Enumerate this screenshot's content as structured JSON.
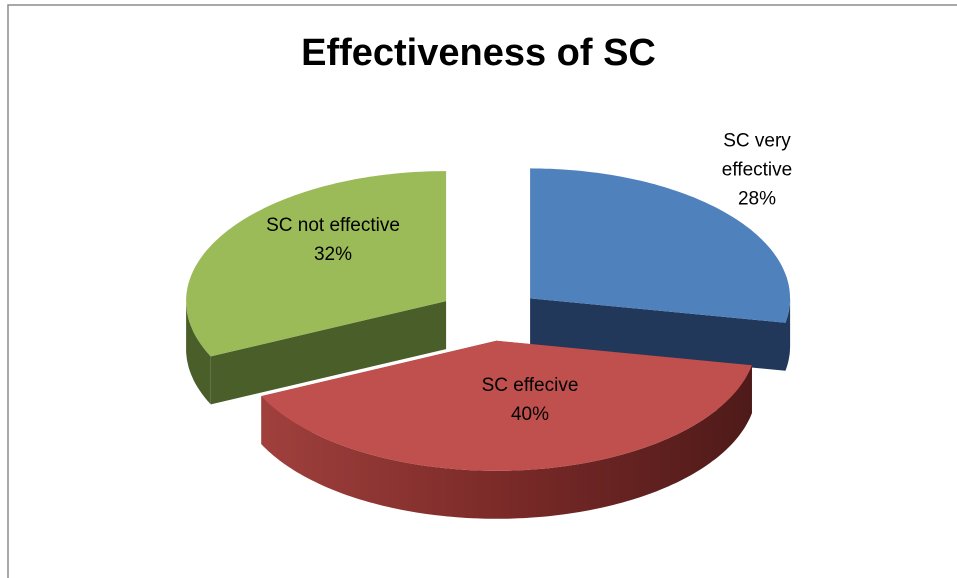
{
  "chart_data": {
    "type": "pie",
    "title": "Effectiveness of SC",
    "categories": [
      "SC very effective",
      "SC effecive",
      "SC not effective"
    ],
    "values": [
      28,
      40,
      32
    ],
    "value_labels": [
      "28%",
      "40%",
      "32%"
    ],
    "colors": [
      "#4f81bd",
      "#c0504d",
      "#9bbb59"
    ]
  }
}
